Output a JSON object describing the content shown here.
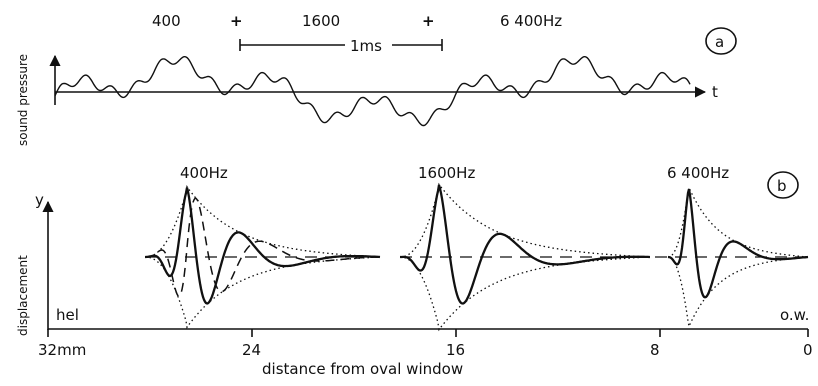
{
  "panel_a": {
    "badge": "a",
    "ylabel": "sound pressure",
    "xlabel": "t",
    "freq_1": "400",
    "plus_1": "+",
    "freq_2": "1600",
    "plus_2": "+",
    "freq_3": "6 400Hz",
    "scale_label": "1ms"
  },
  "panel_b": {
    "badge": "b",
    "ylabel": "displacement",
    "y_axis": "y",
    "left_end": "hel",
    "right_end": "o.w.",
    "xlabel": "distance from oval window",
    "ticks": [
      "32mm",
      "24",
      "16",
      "8",
      "0"
    ],
    "waves": [
      {
        "label": "400Hz"
      },
      {
        "label": "1600Hz"
      },
      {
        "label": "6 400Hz"
      }
    ]
  }
}
